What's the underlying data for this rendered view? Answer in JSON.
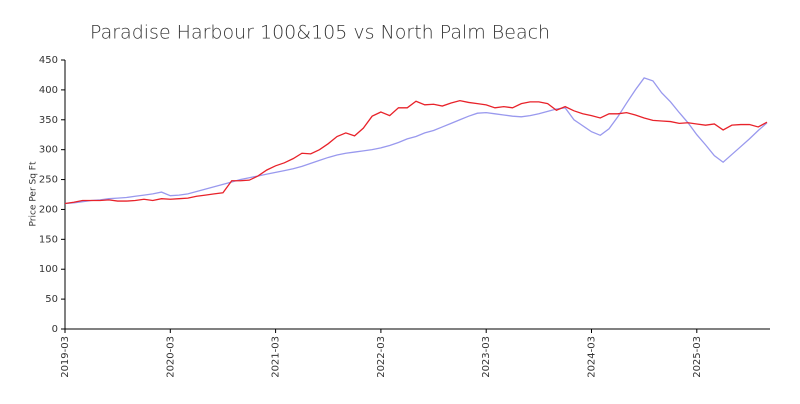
{
  "chart_data": {
    "type": "line",
    "title": "Paradise Harbour 100&105 vs North Palm Beach",
    "y_label": "Price Per Sq Ft",
    "categories": [
      "2019-03",
      null,
      null,
      null,
      null,
      null,
      null,
      null,
      null,
      null,
      null,
      null,
      "2020-03",
      null,
      null,
      null,
      null,
      null,
      null,
      null,
      null,
      null,
      null,
      null,
      "2021-03",
      null,
      null,
      null,
      null,
      null,
      null,
      null,
      null,
      null,
      null,
      null,
      "2022-03",
      null,
      null,
      null,
      null,
      null,
      null,
      null,
      null,
      null,
      null,
      null,
      "2023-03",
      null,
      null,
      null,
      null,
      null,
      null,
      null,
      null,
      null,
      null,
      null,
      "2024-03",
      null,
      null,
      null,
      null,
      null,
      null,
      null,
      null,
      null,
      null,
      null,
      "2025-03",
      null,
      null,
      null,
      null,
      null,
      null,
      null,
      null
    ],
    "series": [
      {
        "color": "#9999ee",
        "values": [
          210,
          211,
          213,
          215,
          216,
          218,
          219,
          220,
          222,
          224,
          226,
          229,
          223,
          224,
          226,
          230,
          234,
          238,
          242,
          246,
          250,
          253,
          256,
          259,
          262,
          265,
          268,
          272,
          277,
          282,
          287,
          291,
          294,
          296,
          298,
          300,
          303,
          307,
          312,
          318,
          322,
          328,
          332,
          338,
          344,
          350,
          356,
          361,
          362,
          360,
          358,
          356,
          355,
          357,
          360,
          364,
          368,
          370,
          350,
          340,
          330,
          324,
          335,
          355,
          378,
          400,
          420,
          415,
          395,
          380,
          362,
          345,
          325,
          308,
          290,
          279,
          292,
          305,
          318,
          332,
          345
        ]
      },
      {
        "color": "#e8222a",
        "values": [
          210,
          212,
          215,
          215,
          215,
          216,
          214,
          214,
          215,
          217,
          215,
          218,
          217,
          218,
          219,
          222,
          224,
          226,
          228,
          248,
          248,
          249,
          256,
          266,
          273,
          278,
          285,
          294,
          293,
          300,
          310,
          322,
          328,
          323,
          336,
          356,
          363,
          357,
          370,
          370,
          381,
          375,
          376,
          373,
          378,
          382,
          379,
          377,
          375,
          370,
          372,
          370,
          377,
          380,
          380,
          377,
          366,
          372,
          365,
          360,
          357,
          353,
          360,
          360,
          362,
          358,
          353,
          349,
          348,
          347,
          344,
          345,
          343,
          341,
          343,
          333,
          341,
          342,
          342,
          338,
          346
        ]
      }
    ],
    "ylim": [
      0,
      450
    ],
    "yticks": [
      0,
      50,
      100,
      150,
      200,
      250,
      300,
      350,
      400,
      450
    ]
  }
}
